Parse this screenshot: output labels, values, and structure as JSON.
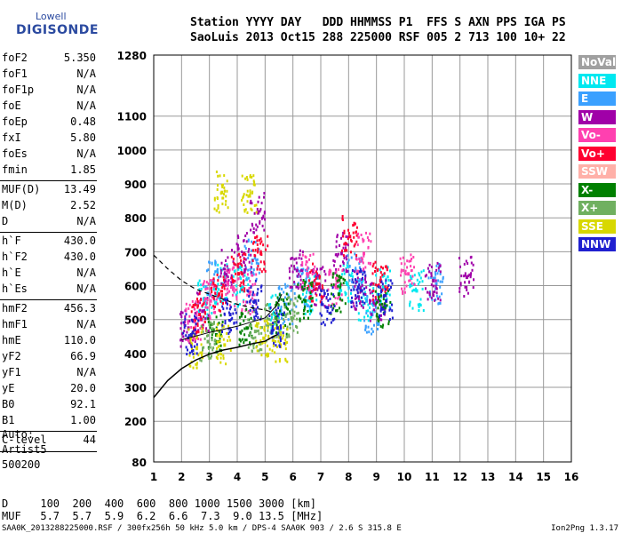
{
  "logo": {
    "top": "Lowell",
    "bottom": "DIGISONDE"
  },
  "header": {
    "line1": "Station YYYY DAY   DDD HHMMSS P1  FFS S AXN PPS IGA PS",
    "line2": "SaoLuis 2013 Oct15 288 225000 RSF 005 2 713 100 10+ 22"
  },
  "params": [
    {
      "k": "foF2",
      "v": "5.350"
    },
    {
      "k": "foF1",
      "v": "N/A"
    },
    {
      "k": "foF1p",
      "v": "N/A"
    },
    {
      "k": "foE",
      "v": "N/A"
    },
    {
      "k": "foEp",
      "v": "0.48"
    },
    {
      "k": "fxI",
      "v": "5.80"
    },
    {
      "k": "foEs",
      "v": "N/A"
    },
    {
      "k": "fmin",
      "v": "1.85"
    },
    {
      "k": "MUF(D)",
      "v": "13.49"
    },
    {
      "k": "M(D)",
      "v": "2.52"
    },
    {
      "k": "D",
      "v": "N/A"
    },
    {
      "k": "h`F",
      "v": "430.0"
    },
    {
      "k": "h`F2",
      "v": "430.0"
    },
    {
      "k": "h`E",
      "v": "N/A"
    },
    {
      "k": "h`Es",
      "v": "N/A"
    },
    {
      "k": "hmF2",
      "v": "456.3"
    },
    {
      "k": "hmF1",
      "v": "N/A"
    },
    {
      "k": "hmE",
      "v": "110.0"
    },
    {
      "k": "yF2",
      "v": "66.9"
    },
    {
      "k": "yF1",
      "v": "N/A"
    },
    {
      "k": "yE",
      "v": "20.0"
    },
    {
      "k": "B0",
      "v": "92.1"
    },
    {
      "k": "B1",
      "v": "1.00"
    },
    {
      "k": "C-level",
      "v": "44"
    }
  ],
  "auto": {
    "l1": "Auto:",
    "l2": "Artist5",
    "l3": "500200"
  },
  "legend": [
    {
      "label": "NoVal",
      "color": "#a0a0a0"
    },
    {
      "label": "NNE",
      "color": "#00e8f0"
    },
    {
      "label": "E",
      "color": "#3aa0ff"
    },
    {
      "label": "W",
      "color": "#a000a8"
    },
    {
      "label": "Vo-",
      "color": "#ff40b0"
    },
    {
      "label": "Vo+",
      "color": "#ff0030"
    },
    {
      "label": "SSW",
      "color": "#ffb0a8"
    },
    {
      "label": "X-",
      "color": "#008000"
    },
    {
      "label": "X+",
      "color": "#70b060"
    },
    {
      "label": "SSE",
      "color": "#d8d800"
    },
    {
      "label": "NNW",
      "color": "#2020d0"
    }
  ],
  "footer": {
    "d": "D     100  200  400  600  800 1000 1500 3000 [km]",
    "muf": "MUF   5.7  5.7  5.9  6.2  6.6  7.3  9.0 13.5 [MHz]",
    "src": "SAA0K_2013288225000.RSF / 300fx256h 50 kHz 5.0 km / DPS-4 SAA0K 903 / 2.6 S 315.8 E",
    "version": "Ion2Png 1.3.17"
  },
  "chart_data": {
    "type": "scatter",
    "xlabel": "",
    "ylabel": "",
    "xlim": [
      1,
      16
    ],
    "ylim": [
      80,
      1280
    ],
    "x_ticks": [
      1,
      2,
      3,
      4,
      5,
      6,
      7,
      8,
      9,
      10,
      11,
      12,
      13,
      14,
      15,
      16
    ],
    "y_ticks": [
      80,
      200,
      300,
      400,
      500,
      600,
      700,
      800,
      900,
      1000,
      1100,
      1280
    ],
    "grid": true,
    "series": [
      {
        "name": "NNE",
        "values": [
          [
            2.8,
            560
          ],
          [
            3.4,
            610
          ],
          [
            4.1,
            600
          ],
          [
            5.3,
            520
          ],
          [
            6.6,
            580
          ],
          [
            7.9,
            610
          ],
          [
            8.6,
            560
          ],
          [
            9.2,
            600
          ],
          [
            10.4,
            590
          ]
        ]
      },
      {
        "name": "E",
        "values": [
          [
            3.1,
            620
          ],
          [
            4.5,
            680
          ],
          [
            5.7,
            550
          ],
          [
            6.3,
            600
          ],
          [
            8.2,
            650
          ],
          [
            8.8,
            520
          ],
          [
            11.1,
            610
          ]
        ]
      },
      {
        "name": "W",
        "values": [
          [
            2.2,
            480
          ],
          [
            2.7,
            530
          ],
          [
            3.6,
            650
          ],
          [
            4.2,
            700
          ],
          [
            4.7,
            820
          ],
          [
            6.1,
            650
          ],
          [
            6.9,
            600
          ],
          [
            7.7,
            700
          ],
          [
            8.4,
            590
          ],
          [
            9.0,
            560
          ],
          [
            11.0,
            620
          ],
          [
            12.2,
            630
          ]
        ]
      },
      {
        "name": "Vo-",
        "values": [
          [
            2.4,
            500
          ],
          [
            3.0,
            560
          ],
          [
            3.8,
            600
          ],
          [
            4.4,
            580
          ],
          [
            6.5,
            640
          ],
          [
            7.5,
            600
          ],
          [
            8.5,
            700
          ],
          [
            10.1,
            640
          ]
        ]
      },
      {
        "name": "Vo+",
        "values": [
          [
            2.6,
            520
          ],
          [
            3.3,
            580
          ],
          [
            4.0,
            640
          ],
          [
            4.8,
            700
          ],
          [
            6.8,
            610
          ],
          [
            8.0,
            750
          ],
          [
            9.1,
            620
          ]
        ]
      },
      {
        "name": "X-",
        "values": [
          [
            3.2,
            460
          ],
          [
            4.3,
            480
          ],
          [
            5.6,
            520
          ],
          [
            6.4,
            560
          ],
          [
            7.6,
            580
          ],
          [
            9.2,
            540
          ]
        ]
      },
      {
        "name": "X+",
        "values": [
          [
            2.9,
            440
          ],
          [
            4.6,
            470
          ],
          [
            5.2,
            490
          ],
          [
            5.9,
            510
          ]
        ]
      },
      {
        "name": "SSE",
        "values": [
          [
            2.5,
            420
          ],
          [
            3.5,
            430
          ],
          [
            4.9,
            450
          ],
          [
            5.5,
            430
          ],
          [
            3.4,
            880
          ],
          [
            4.4,
            870
          ]
        ]
      },
      {
        "name": "NNW",
        "values": [
          [
            2.3,
            460
          ],
          [
            3.7,
            520
          ],
          [
            4.6,
            560
          ],
          [
            5.4,
            480
          ],
          [
            7.2,
            540
          ],
          [
            8.3,
            600
          ],
          [
            9.3,
            560
          ]
        ]
      }
    ],
    "profile_curve": [
      [
        1,
        270
      ],
      [
        1.5,
        320
      ],
      [
        2,
        355
      ],
      [
        2.5,
        380
      ],
      [
        3,
        398
      ],
      [
        3.5,
        410
      ],
      [
        4,
        418
      ],
      [
        4.5,
        428
      ],
      [
        5,
        436
      ],
      [
        5.3,
        450
      ],
      [
        5.45,
        456
      ]
    ],
    "dashed_curve": [
      [
        1,
        690
      ],
      [
        1.5,
        650
      ],
      [
        2,
        615
      ],
      [
        2.5,
        590
      ],
      [
        3,
        575
      ],
      [
        3.5,
        560
      ],
      [
        4,
        545
      ],
      [
        4.5,
        535
      ],
      [
        5,
        528
      ],
      [
        5.35,
        520
      ]
    ],
    "thin_curve": [
      [
        2,
        440
      ],
      [
        3,
        462
      ],
      [
        4,
        480
      ],
      [
        5,
        505
      ],
      [
        5.4,
        540
      ],
      [
        5.6,
        575
      ]
    ]
  }
}
